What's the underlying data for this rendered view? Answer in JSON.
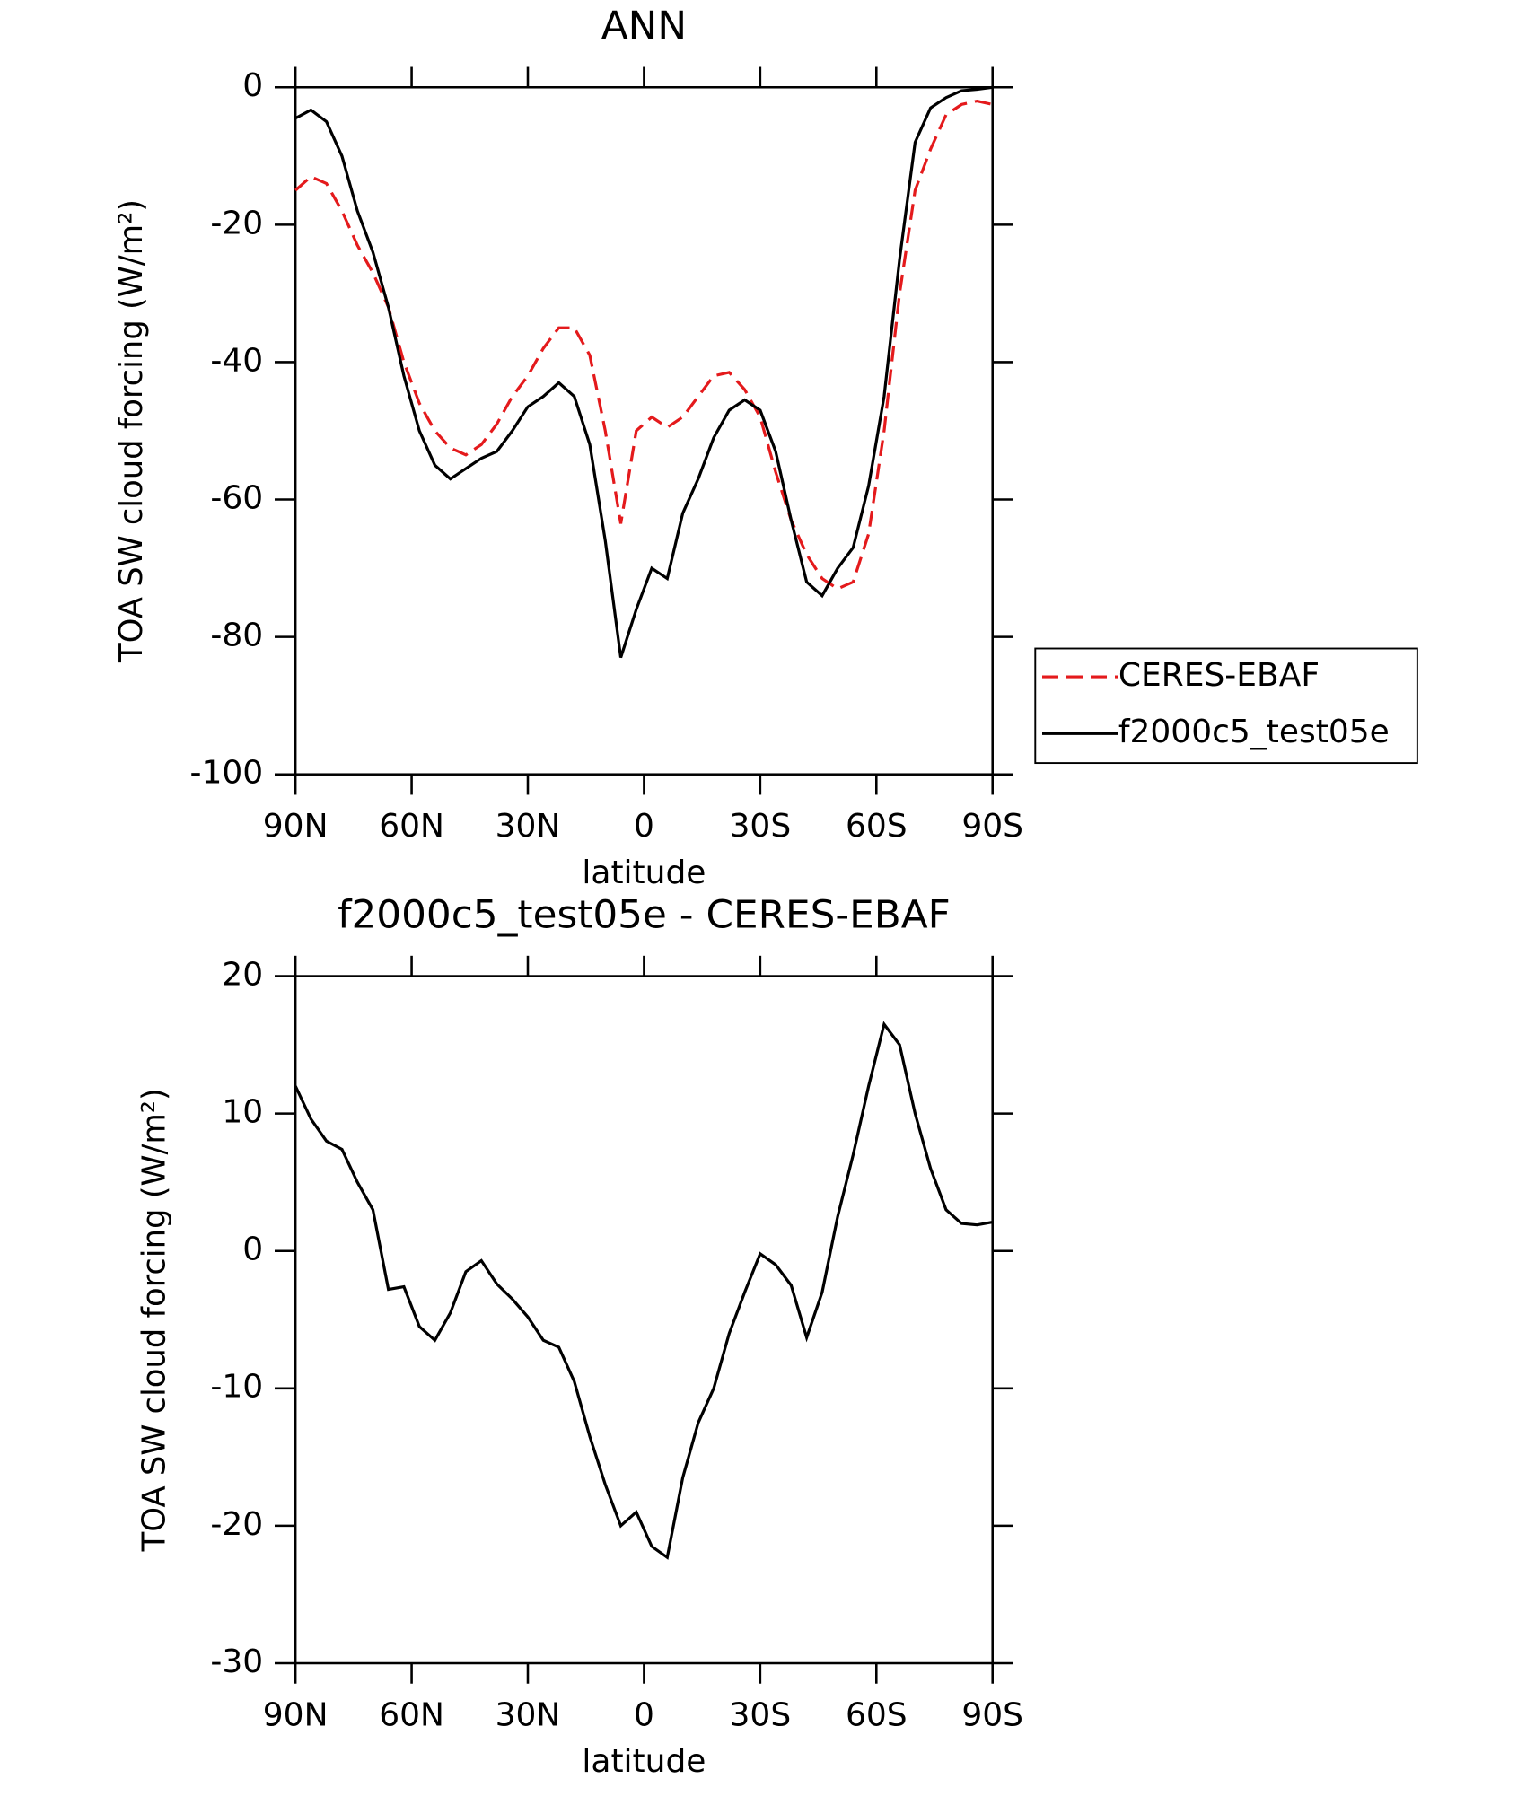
{
  "chart_data": [
    {
      "type": "line",
      "title": "ANN",
      "xlabel": "latitude",
      "ylabel": "TOA SW cloud forcing (W/m²)",
      "x": [
        90,
        86,
        82,
        78,
        74,
        70,
        66,
        62,
        58,
        54,
        50,
        46,
        42,
        38,
        34,
        30,
        26,
        22,
        18,
        14,
        10,
        6,
        2,
        -2,
        -6,
        -10,
        -14,
        -18,
        -22,
        -26,
        -30,
        -34,
        -38,
        -42,
        -46,
        -50,
        -54,
        -58,
        -62,
        -66,
        -70,
        -74,
        -78,
        -82,
        -86,
        -90
      ],
      "series": [
        {
          "name": "CERES-EBAF",
          "color": "#e41a1c",
          "dashed": true,
          "values": [
            -15,
            -13,
            -14,
            -18,
            -23,
            -27,
            -32,
            -40,
            -46,
            -50,
            -52.5,
            -53.5,
            -52,
            -49,
            -45,
            -42,
            -38,
            -35,
            -35,
            -39,
            -50,
            -63.5,
            -50,
            -48,
            -49.5,
            -48,
            -45,
            -42,
            -41.5,
            -44,
            -48,
            -56,
            -63,
            -68,
            -71.5,
            -73,
            -72,
            -65,
            -50,
            -30,
            -15,
            -9,
            -4,
            -2.5,
            -2,
            -2.5
          ]
        },
        {
          "name": "f2000c5_test05e",
          "color": "#000000",
          "dashed": false,
          "values": [
            -4.5,
            -3.3,
            -5,
            -10,
            -18,
            -24,
            -32,
            -42,
            -50,
            -55,
            -57,
            -55.5,
            -54,
            -53,
            -50,
            -46.5,
            -45,
            -43,
            -45,
            -52,
            -66,
            -83,
            -76,
            -70,
            -71.5,
            -62,
            -57,
            -51,
            -47,
            -45.5,
            -47,
            -53,
            -63,
            -72,
            -74,
            -70,
            -67,
            -58,
            -45,
            -25,
            -8,
            -3,
            -1.5,
            -0.5,
            -0.3,
            0
          ]
        }
      ],
      "xlim": [
        90,
        -90
      ],
      "xticks": [
        {
          "value": 90,
          "label": "90N"
        },
        {
          "value": 60,
          "label": "60N"
        },
        {
          "value": 30,
          "label": "30N"
        },
        0,
        {
          "value": -30,
          "label": "30S"
        },
        {
          "value": -60,
          "label": "60S"
        },
        {
          "value": -90,
          "label": "90S"
        }
      ],
      "ylim": [
        -100,
        0
      ],
      "yticks": [
        0,
        -20,
        -40,
        -60,
        -80,
        -100
      ],
      "legend": "right"
    },
    {
      "type": "line",
      "title": "f2000c5_test05e - CERES-EBAF",
      "xlabel": "latitude",
      "ylabel": "TOA SW cloud forcing (W/m²)",
      "x": [
        90,
        86,
        82,
        78,
        74,
        70,
        66,
        62,
        58,
        54,
        50,
        46,
        42,
        38,
        34,
        30,
        26,
        22,
        18,
        14,
        10,
        6,
        2,
        -2,
        -6,
        -10,
        -14,
        -18,
        -22,
        -26,
        -30,
        -34,
        -38,
        -42,
        -46,
        -50,
        -54,
        -58,
        -62,
        -66,
        -70,
        -74,
        -78,
        -82,
        -86,
        -90
      ],
      "series": [
        {
          "color": "#000000",
          "dashed": false,
          "values": [
            12,
            9.6,
            8,
            7.4,
            5,
            3,
            -2.8,
            -2.6,
            -5.5,
            -6.5,
            -4.5,
            -1.5,
            -0.7,
            -2.4,
            -3.5,
            -4.8,
            -6.5,
            -7,
            -9.5,
            -13.5,
            -17,
            -20,
            -19,
            -21.5,
            -22.3,
            -16.5,
            -12.5,
            -10,
            -6,
            -3,
            -0.2,
            -1,
            -2.5,
            -6.3,
            -3,
            2.5,
            7,
            12,
            16.5,
            15,
            10,
            6,
            3,
            2,
            1.9,
            2.1
          ]
        }
      ],
      "xlim": [
        90,
        -90
      ],
      "xticks": [
        {
          "value": 90,
          "label": "90N"
        },
        {
          "value": 60,
          "label": "60N"
        },
        {
          "value": 30,
          "label": "30N"
        },
        0,
        {
          "value": -30,
          "label": "30S"
        },
        {
          "value": -60,
          "label": "60S"
        },
        {
          "value": -90,
          "label": "90S"
        }
      ],
      "ylim": [
        -30,
        20
      ],
      "yticks": [
        20,
        10,
        0,
        -10,
        -20,
        -30
      ]
    }
  ]
}
